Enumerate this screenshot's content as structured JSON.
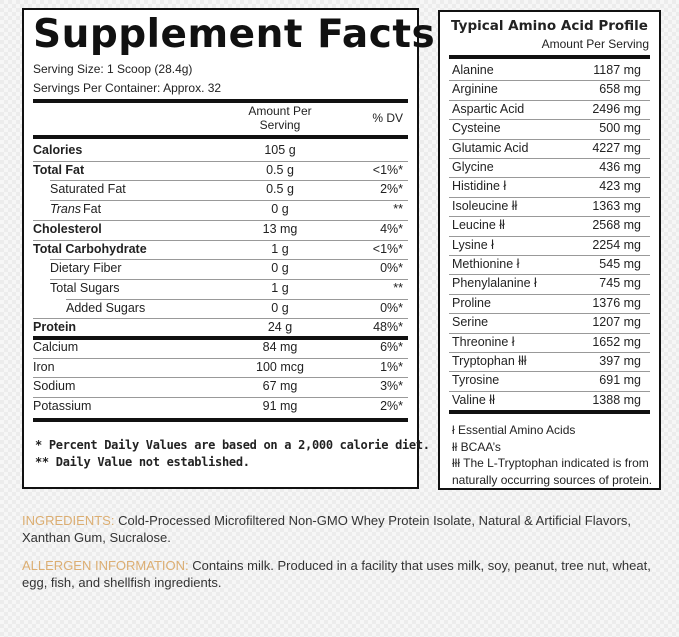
{
  "supplement_facts": {
    "title": "Supplement Facts",
    "serving_size": "Serving Size: 1 Scoop (28.4g)",
    "servings_per_container": "Servings Per Container: Approx. 32",
    "col_amount_line1": "Amount Per",
    "col_amount_line2": "Serving",
    "col_dv": "% DV",
    "rows": [
      {
        "name": "Calories",
        "amount": "105 g",
        "dv": "",
        "bold": true,
        "indent": 0
      },
      {
        "name": "Total Fat",
        "amount": "0.5 g",
        "dv": "<1%*",
        "bold": true,
        "indent": 0
      },
      {
        "name": "Saturated Fat",
        "amount": "0.5 g",
        "dv": "2%*",
        "bold": false,
        "indent": 1
      },
      {
        "name": "Trans",
        "name_suffix": " Fat",
        "amount": "0 g",
        "dv": "**",
        "bold": false,
        "indent": 1,
        "italic_prefix": true
      },
      {
        "name": "Cholesterol",
        "amount": "13 mg",
        "dv": "4%*",
        "bold": true,
        "indent": 0
      },
      {
        "name": "Total Carbohydrate",
        "amount": "1 g",
        "dv": "<1%*",
        "bold": true,
        "indent": 0
      },
      {
        "name": "Dietary Fiber",
        "amount": "0 g",
        "dv": "0%*",
        "bold": false,
        "indent": 1
      },
      {
        "name": "Total Sugars",
        "amount": "1 g",
        "dv": "**",
        "bold": false,
        "indent": 1
      },
      {
        "name": "Added Sugars",
        "amount": "0 g",
        "dv": "0%*",
        "bold": false,
        "indent": 2
      },
      {
        "name": "Protein",
        "amount": "24 g",
        "dv": "48%*",
        "bold": true,
        "indent": 0
      },
      {
        "name": "Calcium",
        "amount": "84 mg",
        "dv": "6%*",
        "bold": false,
        "indent": 0
      },
      {
        "name": "Iron",
        "amount": "100 mcg",
        "dv": "1%*",
        "bold": false,
        "indent": 0
      },
      {
        "name": "Sodium",
        "amount": "67 mg",
        "dv": "3%*",
        "bold": false,
        "indent": 0
      },
      {
        "name": "Potassium",
        "amount": "91 mg",
        "dv": "2%*",
        "bold": false,
        "indent": 0
      }
    ],
    "footnote1": "* Percent Daily Values are based on a 2,000 calorie diet.",
    "footnote2": "** Daily Value not established."
  },
  "amino_profile": {
    "title": "Typical Amino Acid Profile",
    "subtitle": "Amount Per Serving",
    "rows": [
      {
        "name": "Alanine",
        "amount": "1187 mg"
      },
      {
        "name": "Arginine",
        "amount": "658 mg"
      },
      {
        "name": "Aspartic Acid",
        "amount": "2496 mg"
      },
      {
        "name": "Cysteine",
        "amount": "500 mg"
      },
      {
        "name": "Glutamic Acid",
        "amount": "4227 mg"
      },
      {
        "name": "Glycine",
        "amount": "436 mg"
      },
      {
        "name": "Histidine ł",
        "amount": "423 mg"
      },
      {
        "name": "Isoleucine łł",
        "amount": "1363 mg"
      },
      {
        "name": "Leucine łł",
        "amount": "2568 mg"
      },
      {
        "name": "Lysine ł",
        "amount": "2254 mg"
      },
      {
        "name": "Methionine ł",
        "amount": "545 mg"
      },
      {
        "name": "Phenylalanine ł",
        "amount": "745 mg"
      },
      {
        "name": "Proline",
        "amount": "1376 mg"
      },
      {
        "name": "Serine",
        "amount": "1207 mg"
      },
      {
        "name": "Threonine ł",
        "amount": "1652 mg"
      },
      {
        "name": "Tryptophan łłł",
        "amount": "397 mg"
      },
      {
        "name": "Tyrosine",
        "amount": "691 mg"
      },
      {
        "name": "Valine łł",
        "amount": "1388 mg"
      }
    ],
    "footnotes": [
      "ł Essential Amino Acids",
      "łł BCAA’s",
      "łłł The L-Tryptophan indicated is from",
      "naturally occurring sources of protein."
    ]
  },
  "ingredients": {
    "label": "INGREDIENTS:",
    "text": " Cold-Processed Microfiltered Non-GMO Whey Protein Isolate, Natural & Artificial Flavors, Xanthan Gum, Sucralose."
  },
  "allergen": {
    "label": "ALLERGEN INFORMATION:",
    "text": " Contains milk. Produced in a facility that uses milk, soy, peanut, tree nut, wheat, egg, fish, and shellfish ingredients."
  },
  "colors": {
    "label_accent": "#dcae72",
    "border": "#111111"
  }
}
